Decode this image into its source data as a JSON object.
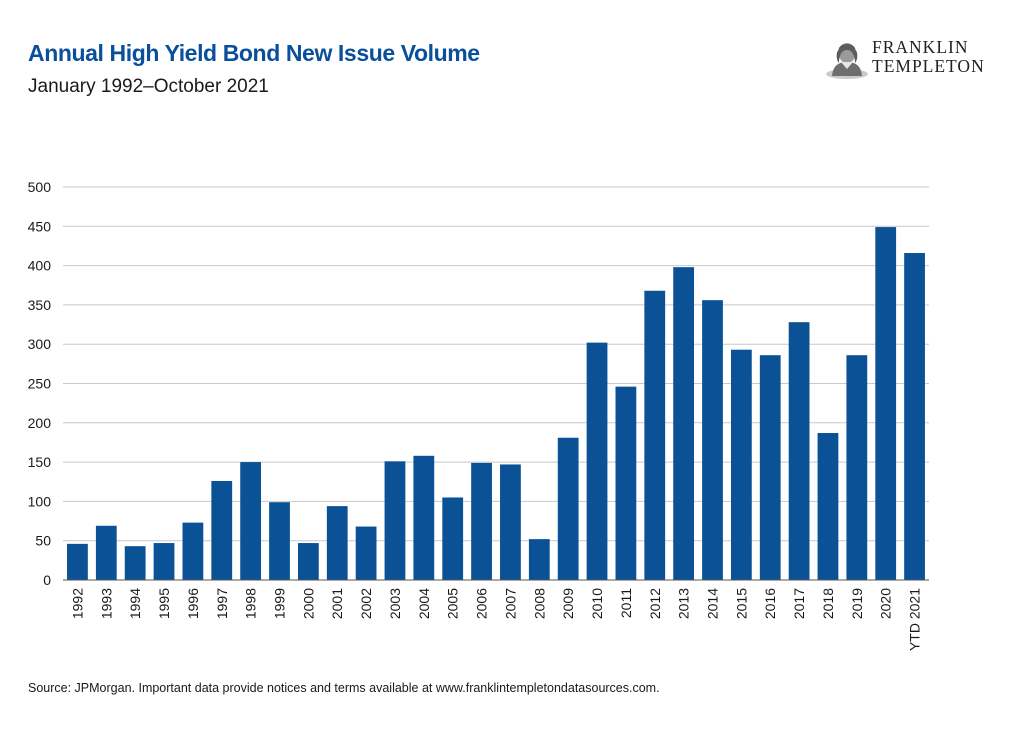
{
  "header": {
    "title": "Annual High Yield Bond New Issue Volume",
    "subtitle": "January 1992–October 2021"
  },
  "logo": {
    "line1": "FRANKLIN",
    "line2": "TEMPLETON"
  },
  "footer": {
    "source": "Source: JPMorgan. Important data provide notices and terms available at www.franklintempletondatasources.com."
  },
  "colors": {
    "bar": "#0a5196",
    "title": "#0a4f9c",
    "grid": "#c8c8c8"
  },
  "chart_data": {
    "type": "bar",
    "title": "Annual High Yield Bond New Issue Volume",
    "subtitle": "January 1992–October 2021",
    "xlabel": "",
    "ylabel": "",
    "ylim": [
      0,
      500
    ],
    "yticks": [
      0,
      50,
      100,
      150,
      200,
      250,
      300,
      350,
      400,
      450,
      500
    ],
    "grid": true,
    "legend": "none",
    "categories": [
      "1992",
      "1993",
      "1994",
      "1995",
      "1996",
      "1997",
      "1998",
      "1999",
      "2000",
      "2001",
      "2002",
      "2003",
      "2004",
      "2005",
      "2006",
      "2007",
      "2008",
      "2009",
      "2010",
      "2011",
      "2012",
      "2013",
      "2014",
      "2015",
      "2016",
      "2017",
      "2018",
      "2019",
      "2020",
      "YTD 2021"
    ],
    "values": [
      46,
      69,
      43,
      47,
      73,
      126,
      150,
      99,
      47,
      94,
      68,
      151,
      158,
      105,
      149,
      147,
      52,
      181,
      302,
      246,
      368,
      398,
      356,
      293,
      286,
      328,
      187,
      286,
      449,
      416
    ]
  }
}
